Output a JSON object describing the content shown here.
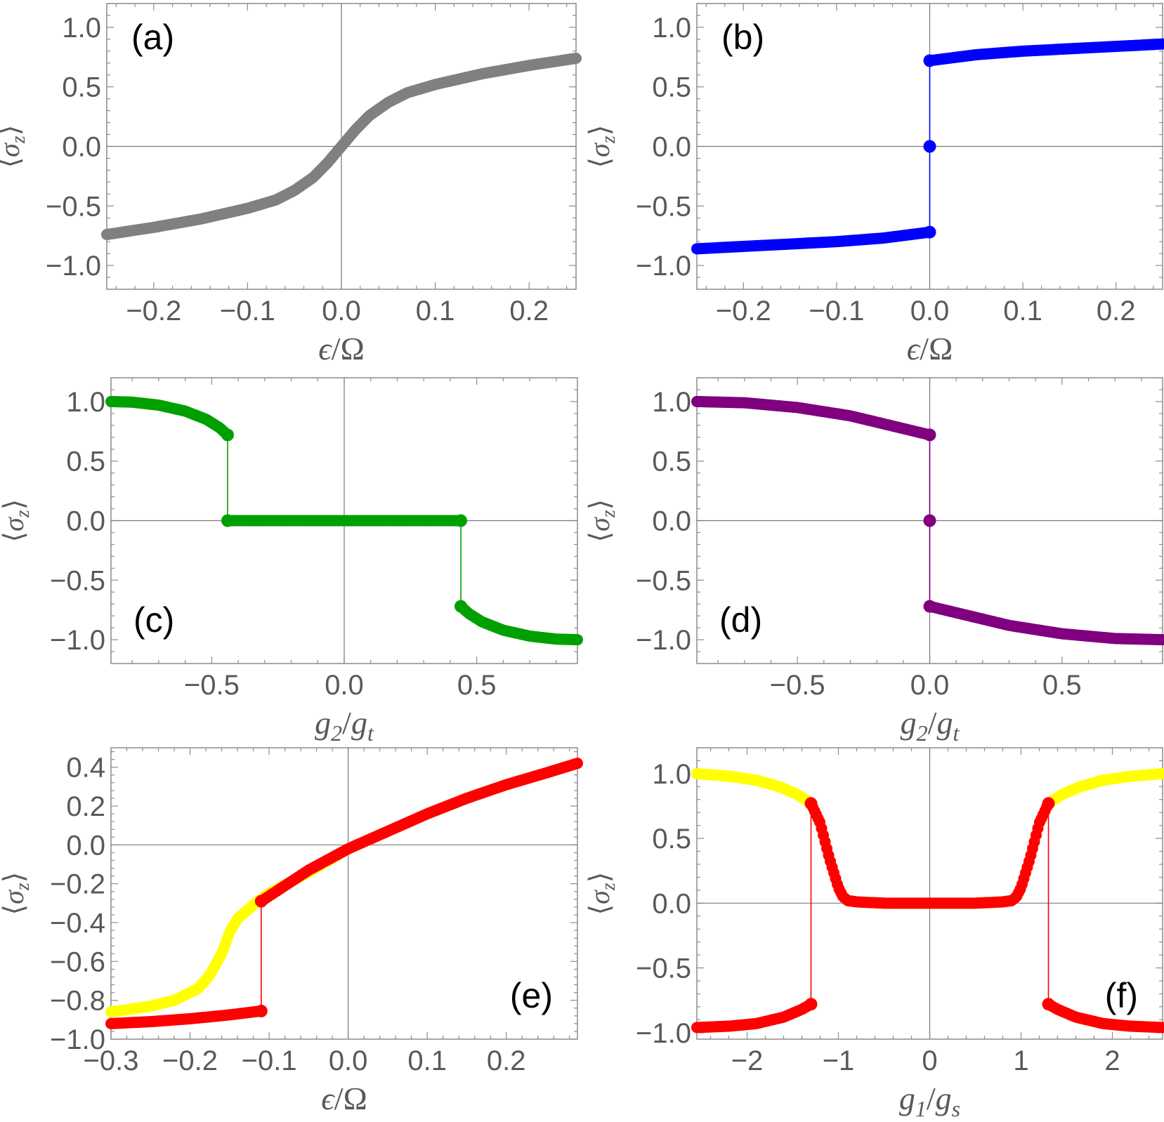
{
  "chart_data": [
    {
      "type": "scatter",
      "panel_label": "(a)",
      "label_position": "top-left",
      "xlabel": "ϵ/Ω",
      "ylabel": "⟨σz⟩",
      "xlim": [
        -0.25,
        0.25
      ],
      "ylim": [
        -1.2,
        1.2
      ],
      "xticks": [
        -0.2,
        -0.1,
        0.0,
        0.1,
        0.2
      ],
      "xtick_labels": [
        "−0.2",
        "−0.1",
        "0.0",
        "0.1",
        "0.2"
      ],
      "yticks": [
        1.0,
        0.5,
        0.0,
        -0.5,
        -1.0
      ],
      "ytick_labels": [
        "1.0",
        "0.5",
        "0.0",
        "−0.5",
        "−1.0"
      ],
      "series": [
        {
          "name": "gray",
          "color": "#808080",
          "segments": [
            {
              "x": [
                -0.25,
                -0.2,
                -0.15,
                -0.1,
                -0.07,
                -0.05,
                -0.03,
                -0.015,
                0.0,
                0.015,
                0.03,
                0.05,
                0.07,
                0.1,
                0.15,
                0.2,
                0.25
              ],
              "y": [
                -0.74,
                -0.68,
                -0.61,
                -0.52,
                -0.45,
                -0.37,
                -0.26,
                -0.14,
                0.0,
                0.14,
                0.26,
                0.37,
                0.45,
                0.52,
                0.61,
                0.68,
                0.74
              ]
            }
          ],
          "jumps": [],
          "markers": []
        }
      ]
    },
    {
      "type": "scatter",
      "panel_label": "(b)",
      "label_position": "top-left",
      "xlabel": "ϵ/Ω",
      "ylabel": "⟨σz⟩",
      "xlim": [
        -0.25,
        0.25
      ],
      "ylim": [
        -1.2,
        1.2
      ],
      "xticks": [
        -0.2,
        -0.1,
        0.0,
        0.1,
        0.2
      ],
      "xtick_labels": [
        "−0.2",
        "−0.1",
        "0.0",
        "0.1",
        "0.2"
      ],
      "yticks": [
        1.0,
        0.5,
        0.0,
        -0.5,
        -1.0
      ],
      "ytick_labels": [
        "1.0",
        "0.5",
        "0.0",
        "−0.5",
        "−1.0"
      ],
      "series": [
        {
          "name": "blue",
          "color": "#0000ff",
          "segments": [
            {
              "x": [
                -0.25,
                -0.2,
                -0.15,
                -0.1,
                -0.05,
                0.0
              ],
              "y": [
                -0.86,
                -0.84,
                -0.82,
                -0.8,
                -0.77,
                -0.72
              ]
            },
            {
              "x": [
                0.0,
                0.05,
                0.1,
                0.15,
                0.2,
                0.25
              ],
              "y": [
                0.72,
                0.77,
                0.8,
                0.82,
                0.84,
                0.86
              ]
            }
          ],
          "jumps": [
            {
              "x": 0.0,
              "y1": -0.72,
              "y2": 0.72
            }
          ],
          "markers": [
            {
              "x": 0.0,
              "y": 0.72
            },
            {
              "x": 0.0,
              "y": 0.0
            },
            {
              "x": 0.0,
              "y": -0.72
            }
          ]
        }
      ]
    },
    {
      "type": "scatter",
      "panel_label": "(c)",
      "label_position": "bottom-left",
      "xlabel": "g2/gt",
      "ylabel": "⟨σz⟩",
      "xlim": [
        -0.88,
        0.88
      ],
      "ylim": [
        -1.2,
        1.2
      ],
      "xticks": [
        -0.5,
        0.0,
        0.5
      ],
      "xtick_labels": [
        "−0.5",
        "0.0",
        "0.5"
      ],
      "yticks": [
        1.0,
        0.5,
        0.0,
        -0.5,
        -1.0
      ],
      "ytick_labels": [
        "1.0",
        "0.5",
        "0.0",
        "−0.5",
        "−1.0"
      ],
      "series": [
        {
          "name": "green",
          "color": "#00a000",
          "segments": [
            {
              "x": [
                -0.88,
                -0.8,
                -0.7,
                -0.6,
                -0.52,
                -0.47,
                -0.44
              ],
              "y": [
                1.0,
                0.995,
                0.97,
                0.92,
                0.85,
                0.78,
                0.72
              ]
            },
            {
              "x": [
                -0.44,
                0.0,
                0.44
              ],
              "y": [
                0.0,
                0.0,
                0.0
              ]
            },
            {
              "x": [
                0.44,
                0.47,
                0.52,
                0.6,
                0.7,
                0.8,
                0.88
              ],
              "y": [
                -0.72,
                -0.78,
                -0.85,
                -0.92,
                -0.97,
                -0.995,
                -1.0
              ]
            }
          ],
          "jumps": [
            {
              "x": -0.44,
              "y1": 0.72,
              "y2": 0.0
            },
            {
              "x": 0.44,
              "y1": 0.0,
              "y2": -0.72
            }
          ],
          "markers": [
            {
              "x": -0.44,
              "y": 0.72
            },
            {
              "x": -0.44,
              "y": 0.0
            },
            {
              "x": 0.44,
              "y": 0.0
            },
            {
              "x": 0.44,
              "y": -0.72
            }
          ]
        }
      ]
    },
    {
      "type": "scatter",
      "panel_label": "(d)",
      "label_position": "bottom-left",
      "xlabel": "g2/gt",
      "ylabel": "⟨σz⟩",
      "xlim": [
        -0.88,
        0.88
      ],
      "ylim": [
        -1.2,
        1.2
      ],
      "xticks": [
        -0.5,
        0.0,
        0.5
      ],
      "xtick_labels": [
        "−0.5",
        "0.0",
        "0.5"
      ],
      "yticks": [
        1.0,
        0.5,
        0.0,
        -0.5,
        -1.0
      ],
      "ytick_labels": [
        "1.0",
        "0.5",
        "0.0",
        "−0.5",
        "−1.0"
      ],
      "series": [
        {
          "name": "purple",
          "color": "#800080",
          "segments": [
            {
              "x": [
                -0.88,
                -0.7,
                -0.5,
                -0.3,
                -0.15,
                0.0
              ],
              "y": [
                1.0,
                0.99,
                0.95,
                0.88,
                0.8,
                0.72
              ]
            },
            {
              "x": [
                0.0,
                0.15,
                0.3,
                0.5,
                0.7,
                0.88
              ],
              "y": [
                -0.72,
                -0.8,
                -0.88,
                -0.95,
                -0.99,
                -1.0
              ]
            }
          ],
          "jumps": [
            {
              "x": 0.0,
              "y1": 0.72,
              "y2": -0.72
            }
          ],
          "markers": [
            {
              "x": 0.0,
              "y": 0.72
            },
            {
              "x": 0.0,
              "y": 0.0
            },
            {
              "x": 0.0,
              "y": -0.72
            }
          ]
        }
      ]
    },
    {
      "type": "scatter",
      "panel_label": "(e)",
      "label_position": "bottom-right",
      "xlabel": "ϵ/Ω",
      "ylabel": "⟨σz⟩",
      "xlim": [
        -0.3,
        0.29
      ],
      "ylim": [
        -1.0,
        0.5
      ],
      "xticks": [
        -0.3,
        -0.2,
        -0.1,
        0.0,
        0.1,
        0.2
      ],
      "xtick_labels": [
        "−0.3",
        "−0.2",
        "−0.1",
        "0.0",
        "0.1",
        "0.2"
      ],
      "yticks": [
        0.4,
        0.2,
        0.0,
        -0.2,
        -0.4,
        -0.6,
        -0.8,
        -1.0
      ],
      "ytick_labels": [
        "0.4",
        "0.2",
        "0.0",
        "−0.2",
        "−0.4",
        "−0.6",
        "−0.8",
        "−1.0"
      ],
      "series": [
        {
          "name": "yellow",
          "color": "#ffff00",
          "segments": [
            {
              "x": [
                -0.3,
                -0.25,
                -0.22,
                -0.19,
                -0.175,
                -0.16,
                -0.15,
                -0.14,
                -0.12,
                -0.1,
                -0.05,
                0.0,
                0.05,
                0.1,
                0.15,
                0.2,
                0.25,
                0.29
              ],
              "y": [
                -0.86,
                -0.83,
                -0.8,
                -0.74,
                -0.67,
                -0.56,
                -0.45,
                -0.38,
                -0.31,
                -0.25,
                -0.14,
                -0.02,
                0.07,
                0.16,
                0.24,
                0.31,
                0.37,
                0.42
              ]
            }
          ],
          "jumps": [],
          "markers": []
        },
        {
          "name": "red",
          "color": "#ff0000",
          "segments": [
            {
              "x": [
                -0.3,
                -0.25,
                -0.2,
                -0.15,
                -0.11
              ],
              "y": [
                -0.92,
                -0.91,
                -0.895,
                -0.875,
                -0.855
              ]
            },
            {
              "x": [
                -0.11,
                -0.08,
                -0.05,
                0.0,
                0.05,
                0.1,
                0.15,
                0.2,
                0.25,
                0.29
              ],
              "y": [
                -0.29,
                -0.21,
                -0.13,
                -0.02,
                0.07,
                0.16,
                0.24,
                0.31,
                0.37,
                0.42
              ]
            }
          ],
          "jumps": [
            {
              "x": -0.11,
              "y1": -0.855,
              "y2": -0.29
            }
          ],
          "markers": [
            {
              "x": -0.11,
              "y": -0.855
            },
            {
              "x": -0.11,
              "y": -0.29
            }
          ]
        }
      ]
    },
    {
      "type": "scatter",
      "panel_label": "(f)",
      "label_position": "bottom-right",
      "xlabel": "g1/gs",
      "ylabel": "⟨σz⟩",
      "xlim": [
        -2.55,
        2.55
      ],
      "ylim": [
        -1.05,
        1.2
      ],
      "xticks": [
        -2,
        -1,
        0,
        1,
        2
      ],
      "xtick_labels": [
        "−2",
        "−1",
        "0",
        "1",
        "2"
      ],
      "yticks": [
        1.0,
        0.5,
        0.0,
        -0.5,
        -1.0
      ],
      "ytick_labels": [
        "1.0",
        "0.5",
        "0.0",
        "−0.5",
        "−1.0"
      ],
      "series": [
        {
          "name": "yellow",
          "color": "#ffff00",
          "segments": [
            {
              "x": [
                -2.55,
                -2.2,
                -1.9,
                -1.65,
                -1.45,
                -1.3,
                -1.2,
                -1.1,
                -1.0,
                -0.95,
                -0.9,
                -0.8,
                -0.5,
                0.0,
                0.5,
                0.8,
                0.9,
                0.95,
                1.0,
                1.1,
                1.2,
                1.3,
                1.45,
                1.65,
                1.9,
                2.2,
                2.55
              ],
              "y": [
                1.0,
                0.98,
                0.95,
                0.9,
                0.84,
                0.77,
                0.62,
                0.35,
                0.12,
                0.05,
                0.02,
                0.01,
                0.0,
                0.0,
                0.0,
                0.01,
                0.02,
                0.05,
                0.12,
                0.35,
                0.62,
                0.77,
                0.84,
                0.9,
                0.95,
                0.98,
                1.0
              ]
            }
          ],
          "jumps": [],
          "markers": []
        },
        {
          "name": "red",
          "color": "#ff0000",
          "segments": [
            {
              "x": [
                -2.55,
                -2.2,
                -1.9,
                -1.6,
                -1.4,
                -1.3
              ],
              "y": [
                -0.96,
                -0.95,
                -0.93,
                -0.88,
                -0.82,
                -0.78
              ]
            },
            {
              "x": [
                -1.3,
                -1.2,
                -1.1,
                -1.0,
                -0.95,
                -0.9,
                -0.8,
                -0.5,
                0.0,
                0.5,
                0.8,
                0.9,
                0.95,
                1.0,
                1.1,
                1.2,
                1.3
              ],
              "y": [
                0.77,
                0.62,
                0.35,
                0.12,
                0.05,
                0.02,
                0.01,
                0.0,
                0.0,
                0.0,
                0.01,
                0.02,
                0.05,
                0.12,
                0.35,
                0.62,
                0.77
              ]
            },
            {
              "x": [
                1.3,
                1.4,
                1.6,
                1.9,
                2.2,
                2.55
              ],
              "y": [
                -0.78,
                -0.82,
                -0.88,
                -0.93,
                -0.95,
                -0.96
              ]
            }
          ],
          "jumps": [
            {
              "x": -1.3,
              "y1": -0.78,
              "y2": 0.77
            },
            {
              "x": 1.3,
              "y1": 0.77,
              "y2": -0.78
            }
          ],
          "markers": [
            {
              "x": -1.3,
              "y": -0.78
            },
            {
              "x": -1.3,
              "y": 0.77
            },
            {
              "x": 1.3,
              "y": 0.77
            },
            {
              "x": 1.3,
              "y": -0.78
            }
          ]
        }
      ]
    }
  ]
}
